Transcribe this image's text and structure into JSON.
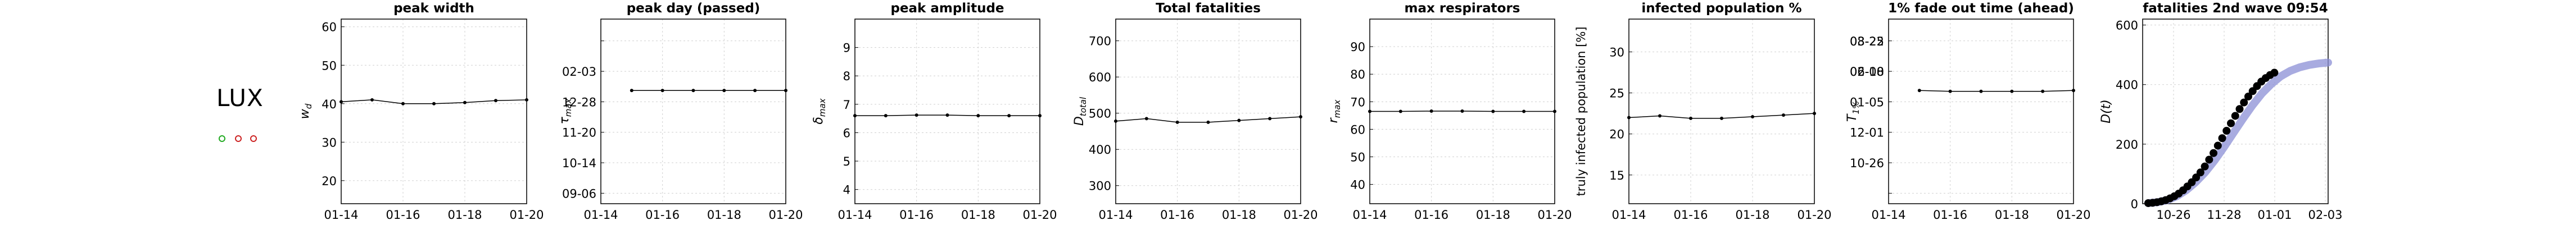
{
  "country": "LUX",
  "marker_colors": [
    "#22aa22",
    "#cc2222",
    "#cc2222"
  ],
  "dates": [
    "01-14",
    "01-15",
    "01-16",
    "01-17",
    "01-18",
    "01-19",
    "01-20"
  ],
  "chart_data": [
    {
      "type": "line",
      "title": "peak width",
      "ylabel": "w_d",
      "ylim": [
        14,
        62
      ],
      "yticks": [
        20,
        30,
        40,
        50,
        60
      ],
      "ytick_labels": [
        "20",
        "30",
        "40",
        "50",
        "60"
      ],
      "xticks": [
        "01-14",
        "01-16",
        "01-18",
        "01-20"
      ],
      "values": [
        40.5,
        41.0,
        40.0,
        40.0,
        40.3,
        40.8,
        41.0
      ]
    },
    {
      "type": "line",
      "title": "peak day (passed)",
      "ylabel": "τ_max",
      "ylim": [
        -12,
        200
      ],
      "yticks": [
        0,
        35,
        70,
        105,
        140,
        175
      ],
      "ytick_labels": [
        "09-06",
        "10-14",
        "11-20",
        "12-28",
        "02-03",
        ""
      ],
      "xticks": [
        "01-14",
        "01-16",
        "01-18",
        "01-20"
      ],
      "values": [
        null,
        118,
        118,
        118,
        118,
        118,
        118
      ]
    },
    {
      "type": "line",
      "title": "peak amplitude",
      "ylabel": "δ_max",
      "ylim": [
        3.5,
        10
      ],
      "yticks": [
        4,
        5,
        6,
        7,
        8,
        9
      ],
      "ytick_labels": [
        "4",
        "5",
        "6",
        "7",
        "8",
        "9"
      ],
      "xticks": [
        "01-14",
        "01-16",
        "01-18",
        "01-20"
      ],
      "values": [
        6.6,
        6.6,
        6.62,
        6.62,
        6.6,
        6.6,
        6.6
      ]
    },
    {
      "type": "line",
      "title": "Total fatalities",
      "ylabel": "D_total",
      "ylim": [
        250,
        760
      ],
      "yticks": [
        300,
        400,
        500,
        600,
        700
      ],
      "ytick_labels": [
        "300",
        "400",
        "500",
        "600",
        "700"
      ],
      "xticks": [
        "01-14",
        "01-16",
        "01-18",
        "01-20"
      ],
      "values": [
        478,
        485,
        475,
        475,
        480,
        485,
        490
      ]
    },
    {
      "type": "line",
      "title": "max respirators",
      "ylabel": "r_max",
      "ylim": [
        33,
        100
      ],
      "yticks": [
        40,
        50,
        60,
        70,
        80,
        90
      ],
      "ytick_labels": [
        "40",
        "50",
        "60",
        "70",
        "80",
        "90"
      ],
      "xticks": [
        "01-14",
        "01-16",
        "01-18",
        "01-20"
      ],
      "values": [
        66.5,
        66.5,
        66.6,
        66.6,
        66.5,
        66.5,
        66.5
      ]
    },
    {
      "type": "line",
      "title": "infected population %",
      "ylabel": "truly infected population [%]",
      "ylim": [
        11.5,
        34
      ],
      "yticks": [
        15,
        20,
        25,
        30
      ],
      "ytick_labels": [
        "15",
        "20",
        "25",
        "30"
      ],
      "xticks": [
        "01-14",
        "01-16",
        "01-18",
        "01-20"
      ],
      "values": [
        22.0,
        22.2,
        21.9,
        21.9,
        22.1,
        22.3,
        22.5
      ]
    },
    {
      "type": "line",
      "title": "1% fade out time (ahead)",
      "ylabel": "T_1%",
      "ylim": [
        -12,
        200
      ],
      "yticks": [
        0,
        35,
        70,
        105,
        140,
        175
      ],
      "ytick_labels": [
        "",
        "10-26",
        "12-01",
        "01-05",
        "02-10",
        "03-25"
      ],
      "ytick_labels_top": [
        "06-08",
        "08-22"
      ],
      "xticks": [
        "01-14",
        "01-16",
        "01-18",
        "01-20"
      ],
      "values": [
        null,
        118,
        117,
        117,
        117,
        117,
        118
      ]
    },
    {
      "type": "scatter",
      "title": "fatalities 2nd wave 09:54",
      "ylabel": "D(t)",
      "ylim": [
        0,
        620
      ],
      "yticks": [
        0,
        200,
        400,
        600
      ],
      "ytick_labels": [
        "0",
        "200",
        "400",
        "600"
      ],
      "xticks": [
        "10-26",
        "11-28",
        "01-01",
        "02-03"
      ],
      "observed_fatalities": [
        2,
        3,
        5,
        8,
        12,
        18,
        25,
        34,
        45,
        58,
        72,
        88,
        105,
        125,
        148,
        170,
        195,
        220,
        245,
        270,
        295,
        318,
        340,
        360,
        378,
        395,
        410,
        422,
        432,
        440
      ],
      "model_fatalities": [
        2,
        5,
        12,
        25,
        45,
        72,
        105,
        145,
        190,
        238,
        285,
        330,
        370,
        402,
        428,
        446,
        458,
        466,
        471,
        474
      ]
    }
  ]
}
